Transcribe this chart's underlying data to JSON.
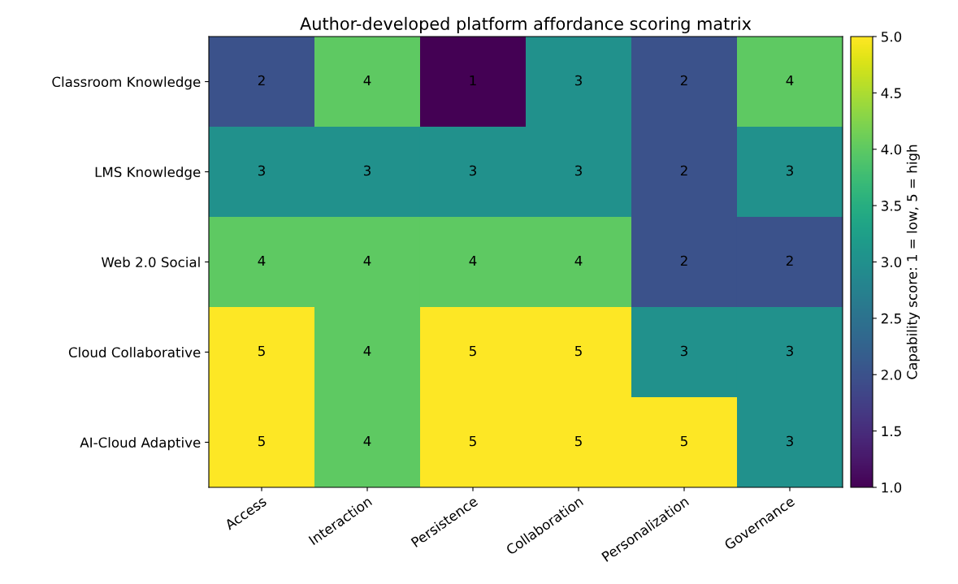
{
  "chart_data": {
    "type": "heatmap",
    "title": "Author-developed platform affordance scoring matrix",
    "categories": [
      "Access",
      "Interaction",
      "Persistence",
      "Collaboration",
      "Personalization",
      "Governance"
    ],
    "y_categories": [
      "Classroom Knowledge",
      "LMS Knowledge",
      "Web 2.0 Social",
      "Cloud Collaborative",
      "AI-Cloud Adaptive"
    ],
    "cells": [
      [
        2,
        4,
        1,
        3,
        2,
        4
      ],
      [
        3,
        3,
        3,
        3,
        2,
        3
      ],
      [
        4,
        4,
        4,
        4,
        2,
        2
      ],
      [
        5,
        4,
        5,
        5,
        3,
        3
      ],
      [
        5,
        4,
        5,
        5,
        5,
        3
      ]
    ],
    "data_labels": true,
    "clabel": "Capability score: 1 = low, 5 = high",
    "clim": [
      1,
      5
    ],
    "cticks": [
      {
        "value": 1,
        "label": "1.0"
      },
      {
        "value": 1.5,
        "label": "1.5"
      },
      {
        "value": 2,
        "label": "2.0"
      },
      {
        "value": 2.5,
        "label": "2.5"
      },
      {
        "value": 3,
        "label": "3.0"
      },
      {
        "value": 3.5,
        "label": "3.5"
      },
      {
        "value": 4,
        "label": "4.0"
      },
      {
        "value": 4.5,
        "label": "4.5"
      },
      {
        "value": 5,
        "label": "5.0"
      }
    ]
  }
}
